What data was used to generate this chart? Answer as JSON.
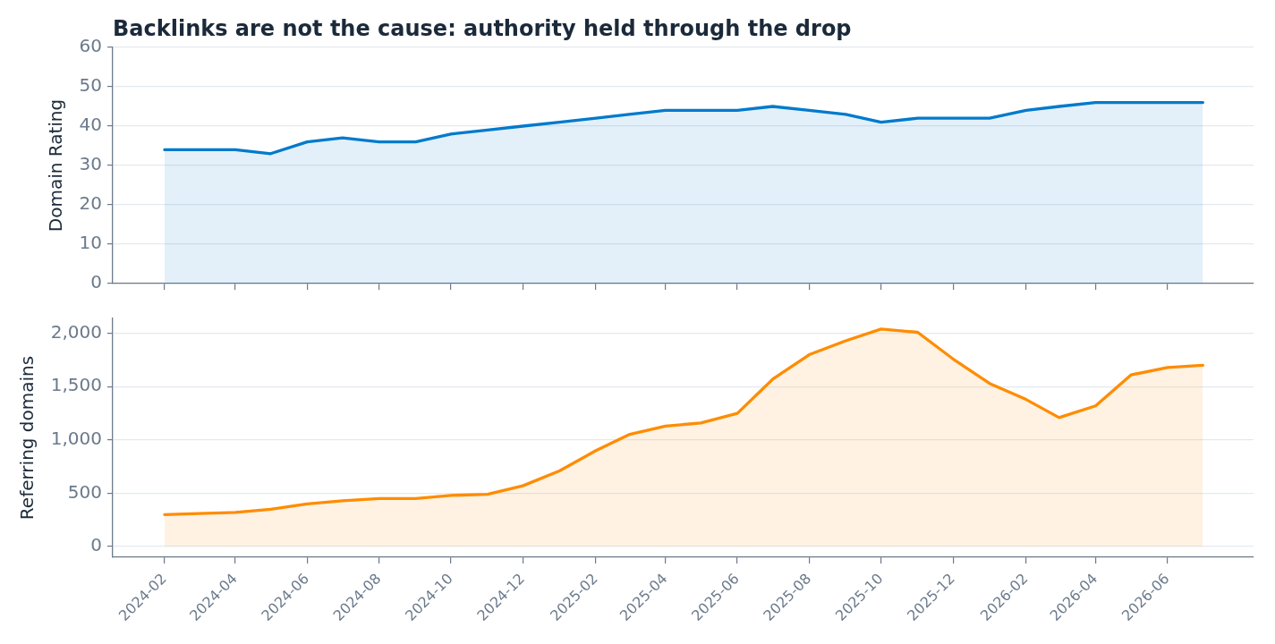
{
  "chart_data": [
    {
      "type": "area",
      "title": "Backlinks are not the cause: authority held through the drop",
      "ylabel": "Domain Rating",
      "x": [
        "2024-02",
        "2024-03",
        "2024-04",
        "2024-05",
        "2024-06",
        "2024-07",
        "2024-08",
        "2024-09",
        "2024-10",
        "2024-11",
        "2024-12",
        "2025-01",
        "2025-02",
        "2025-03",
        "2025-04",
        "2025-05",
        "2025-06",
        "2025-07",
        "2025-08",
        "2025-09",
        "2025-10",
        "2025-11",
        "2025-12",
        "2026-01",
        "2026-02",
        "2026-03",
        "2026-04",
        "2026-05",
        "2026-06",
        "2026-07"
      ],
      "xlim": [
        "2023-12-19",
        "2026-08-13"
      ],
      "xticks": [
        "2024-02",
        "2024-04",
        "2024-06",
        "2024-08",
        "2024-10",
        "2024-12",
        "2025-02",
        "2025-04",
        "2025-06",
        "2025-08",
        "2025-10",
        "2025-12",
        "2026-02",
        "2026-04",
        "2026-06"
      ],
      "ylim": [
        0,
        60
      ],
      "yticks": [
        0,
        10,
        20,
        30,
        40,
        50,
        60
      ],
      "tick_labels": "y",
      "grid": "y",
      "series": [
        {
          "color": "#007acc",
          "values": [
            34,
            34,
            34,
            33,
            36,
            37,
            36,
            36,
            38,
            39,
            40,
            41,
            42,
            43,
            44,
            44,
            44,
            45,
            44,
            43,
            41,
            42,
            42,
            42,
            44,
            45,
            46,
            46,
            46,
            46
          ]
        }
      ]
    },
    {
      "type": "area",
      "ylabel": "Referring domains",
      "x": [
        "2024-02",
        "2024-03",
        "2024-04",
        "2024-05",
        "2024-06",
        "2024-07",
        "2024-08",
        "2024-09",
        "2024-10",
        "2024-11",
        "2024-12",
        "2025-01",
        "2025-02",
        "2025-03",
        "2025-04",
        "2025-05",
        "2025-06",
        "2025-07",
        "2025-08",
        "2025-09",
        "2025-10",
        "2025-11",
        "2025-12",
        "2026-01",
        "2026-02",
        "2026-03",
        "2026-04",
        "2026-05",
        "2026-06",
        "2026-07"
      ],
      "xlim": [
        "2023-12-19",
        "2026-08-13"
      ],
      "xticks": [
        "2024-02",
        "2024-04",
        "2024-06",
        "2024-08",
        "2024-10",
        "2024-12",
        "2025-02",
        "2025-04",
        "2025-06",
        "2025-08",
        "2025-10",
        "2025-12",
        "2026-02",
        "2026-04",
        "2026-06"
      ],
      "ylim": [
        -100,
        2140
      ],
      "yticks": [
        0,
        500,
        {
          "value": 1000,
          "label": "1,000"
        },
        {
          "value": 1500,
          "label": "1,500"
        },
        {
          "value": 2000,
          "label": "2,000"
        }
      ],
      "grid": "y",
      "series": [
        {
          "color": "#ff8c00",
          "values": [
            300,
            310,
            320,
            350,
            400,
            430,
            450,
            450,
            480,
            490,
            570,
            710,
            900,
            1050,
            1130,
            1160,
            1250,
            1570,
            1800,
            1930,
            2040,
            2010,
            1760,
            1530,
            1380,
            1210,
            1320,
            1610,
            1680,
            1700
          ]
        }
      ]
    }
  ]
}
